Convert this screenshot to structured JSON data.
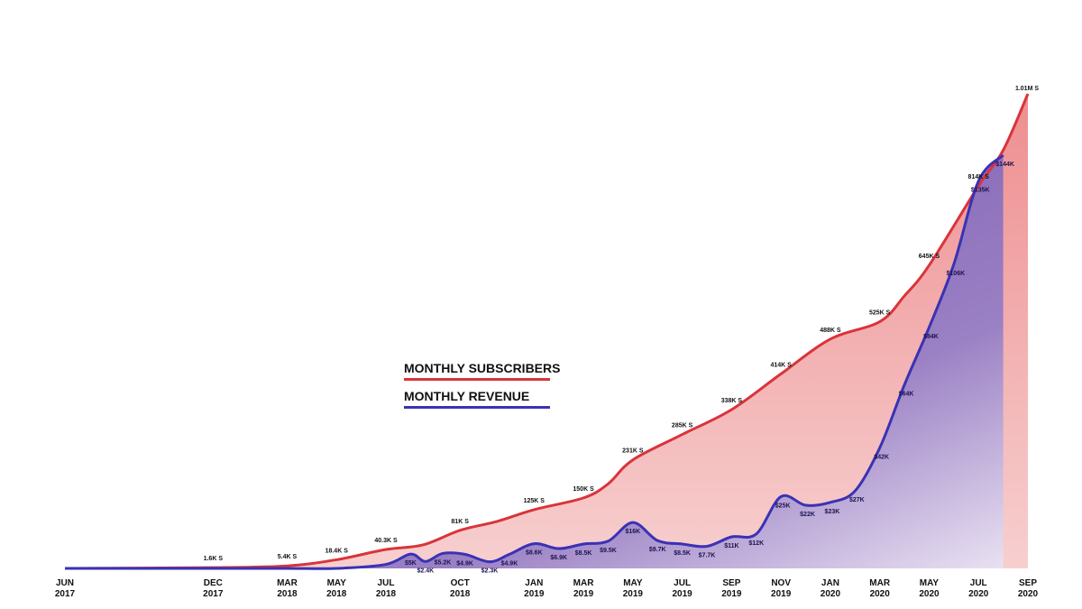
{
  "chart_data": {
    "type": "area",
    "x_ticks": [
      {
        "line1": "JUN",
        "line2": "2017",
        "t": 0
      },
      {
        "line1": "DEC",
        "line2": "2017",
        "t": 6
      },
      {
        "line1": "MAR",
        "line2": "2018",
        "t": 9
      },
      {
        "line1": "MAY",
        "line2": "2018",
        "t": 11
      },
      {
        "line1": "JUL",
        "line2": "2018",
        "t": 13
      },
      {
        "line1": "OCT",
        "line2": "2018",
        "t": 16
      },
      {
        "line1": "JAN",
        "line2": "2019",
        "t": 19
      },
      {
        "line1": "MAR",
        "line2": "2019",
        "t": 21
      },
      {
        "line1": "MAY",
        "line2": "2019",
        "t": 23
      },
      {
        "line1": "JUL",
        "line2": "2019",
        "t": 25
      },
      {
        "line1": "SEP",
        "line2": "2019",
        "t": 27
      },
      {
        "line1": "NOV",
        "line2": "2019",
        "t": 29
      },
      {
        "line1": "JAN",
        "line2": "2020",
        "t": 31
      },
      {
        "line1": "MAR",
        "line2": "2020",
        "t": 33
      },
      {
        "line1": "MAY",
        "line2": "2020",
        "t": 35
      },
      {
        "line1": "JUL",
        "line2": "2020",
        "t": 37
      },
      {
        "line1": "SEP",
        "line2": "2020",
        "t": 39
      }
    ],
    "series": [
      {
        "name": "MONTHLY SUBSCRIBERS",
        "color": "#d9343a",
        "fill_color": "#f1a4a4",
        "ymax": 1010000,
        "points": [
          {
            "t": 0,
            "v": 0
          },
          {
            "t": 6,
            "v": 1600,
            "label": "1.6K S"
          },
          {
            "t": 9,
            "v": 5400,
            "label": "5.4K S"
          },
          {
            "t": 11,
            "v": 18400,
            "label": "18.4K S"
          },
          {
            "t": 13,
            "v": 40300,
            "label": "40.3K S"
          },
          {
            "t": 14.5,
            "v": 50000
          },
          {
            "t": 16,
            "v": 81000,
            "label": "81K S"
          },
          {
            "t": 17.5,
            "v": 100000
          },
          {
            "t": 19,
            "v": 125000,
            "label": "125K S"
          },
          {
            "t": 21,
            "v": 150000,
            "label": "150K S"
          },
          {
            "t": 22,
            "v": 180000
          },
          {
            "t": 23,
            "v": 231000,
            "label": "231K S"
          },
          {
            "t": 25,
            "v": 285000,
            "label": "285K S"
          },
          {
            "t": 27,
            "v": 338000,
            "label": "338K S"
          },
          {
            "t": 29,
            "v": 414000,
            "label": "414K S"
          },
          {
            "t": 31,
            "v": 488000,
            "label": "488K S"
          },
          {
            "t": 33,
            "v": 525000,
            "label": "525K S"
          },
          {
            "t": 34,
            "v": 580000
          },
          {
            "t": 35,
            "v": 645000,
            "label": "645K S"
          },
          {
            "t": 37,
            "v": 814000,
            "label": "814K S"
          },
          {
            "t": 38,
            "v": 890000
          },
          {
            "t": 39,
            "v": 1010000,
            "label": "1.01M S"
          }
        ]
      },
      {
        "name": "MONTHLY REVENUE",
        "color": "#3a32b4",
        "fill_color": "#8a6cb8",
        "ymax": 155000,
        "points": [
          {
            "t": 0,
            "v": 0
          },
          {
            "t": 6,
            "v": 0
          },
          {
            "t": 9,
            "v": 0
          },
          {
            "t": 11,
            "v": 0
          },
          {
            "t": 13,
            "v": 1400
          },
          {
            "t": 14,
            "v": 5000,
            "label": "$5K"
          },
          {
            "t": 14.6,
            "v": 2400,
            "label": "$2.4K"
          },
          {
            "t": 15.3,
            "v": 5200,
            "label": "$5.2K"
          },
          {
            "t": 16.2,
            "v": 4900,
            "label": "$4.9K"
          },
          {
            "t": 17.2,
            "v": 2300,
            "label": "$2.3K"
          },
          {
            "t": 18,
            "v": 4900,
            "label": "$4.9K"
          },
          {
            "t": 19,
            "v": 8600,
            "label": "$8.6K"
          },
          {
            "t": 20,
            "v": 6900,
            "label": "$6.9K"
          },
          {
            "t": 21,
            "v": 8500,
            "label": "$8.5K"
          },
          {
            "t": 22,
            "v": 9500,
            "label": "$9.5K"
          },
          {
            "t": 23,
            "v": 16000,
            "label": "$16K"
          },
          {
            "t": 24,
            "v": 9700,
            "label": "$9.7K"
          },
          {
            "t": 25,
            "v": 8500,
            "label": "$8.5K"
          },
          {
            "t": 26,
            "v": 7700,
            "label": "$7.7K"
          },
          {
            "t": 27,
            "v": 11000,
            "label": "$11K"
          },
          {
            "t": 28,
            "v": 12000,
            "label": "$12K"
          },
          {
            "t": 29,
            "v": 25000,
            "label": "$25K"
          },
          {
            "t": 30,
            "v": 22000,
            "label": "$22K"
          },
          {
            "t": 31,
            "v": 23000,
            "label": "$23K"
          },
          {
            "t": 32,
            "v": 27000,
            "label": "$27K"
          },
          {
            "t": 33,
            "v": 42000,
            "label": "$42K"
          },
          {
            "t": 34,
            "v": 64000,
            "label": "$64K"
          },
          {
            "t": 35,
            "v": 84000,
            "label": "$84K"
          },
          {
            "t": 36,
            "v": 106000,
            "label": "$106K"
          },
          {
            "t": 37,
            "v": 135000,
            "label": "$135K"
          },
          {
            "t": 38,
            "v": 144000,
            "label": "$144K"
          }
        ]
      }
    ],
    "legend": {
      "placement": "center",
      "entries": [
        {
          "label": "MONTHLY SUBSCRIBERS",
          "color": "#d9343a"
        },
        {
          "label": "MONTHLY REVENUE",
          "color": "#3a32b4"
        }
      ]
    },
    "grid": false
  }
}
